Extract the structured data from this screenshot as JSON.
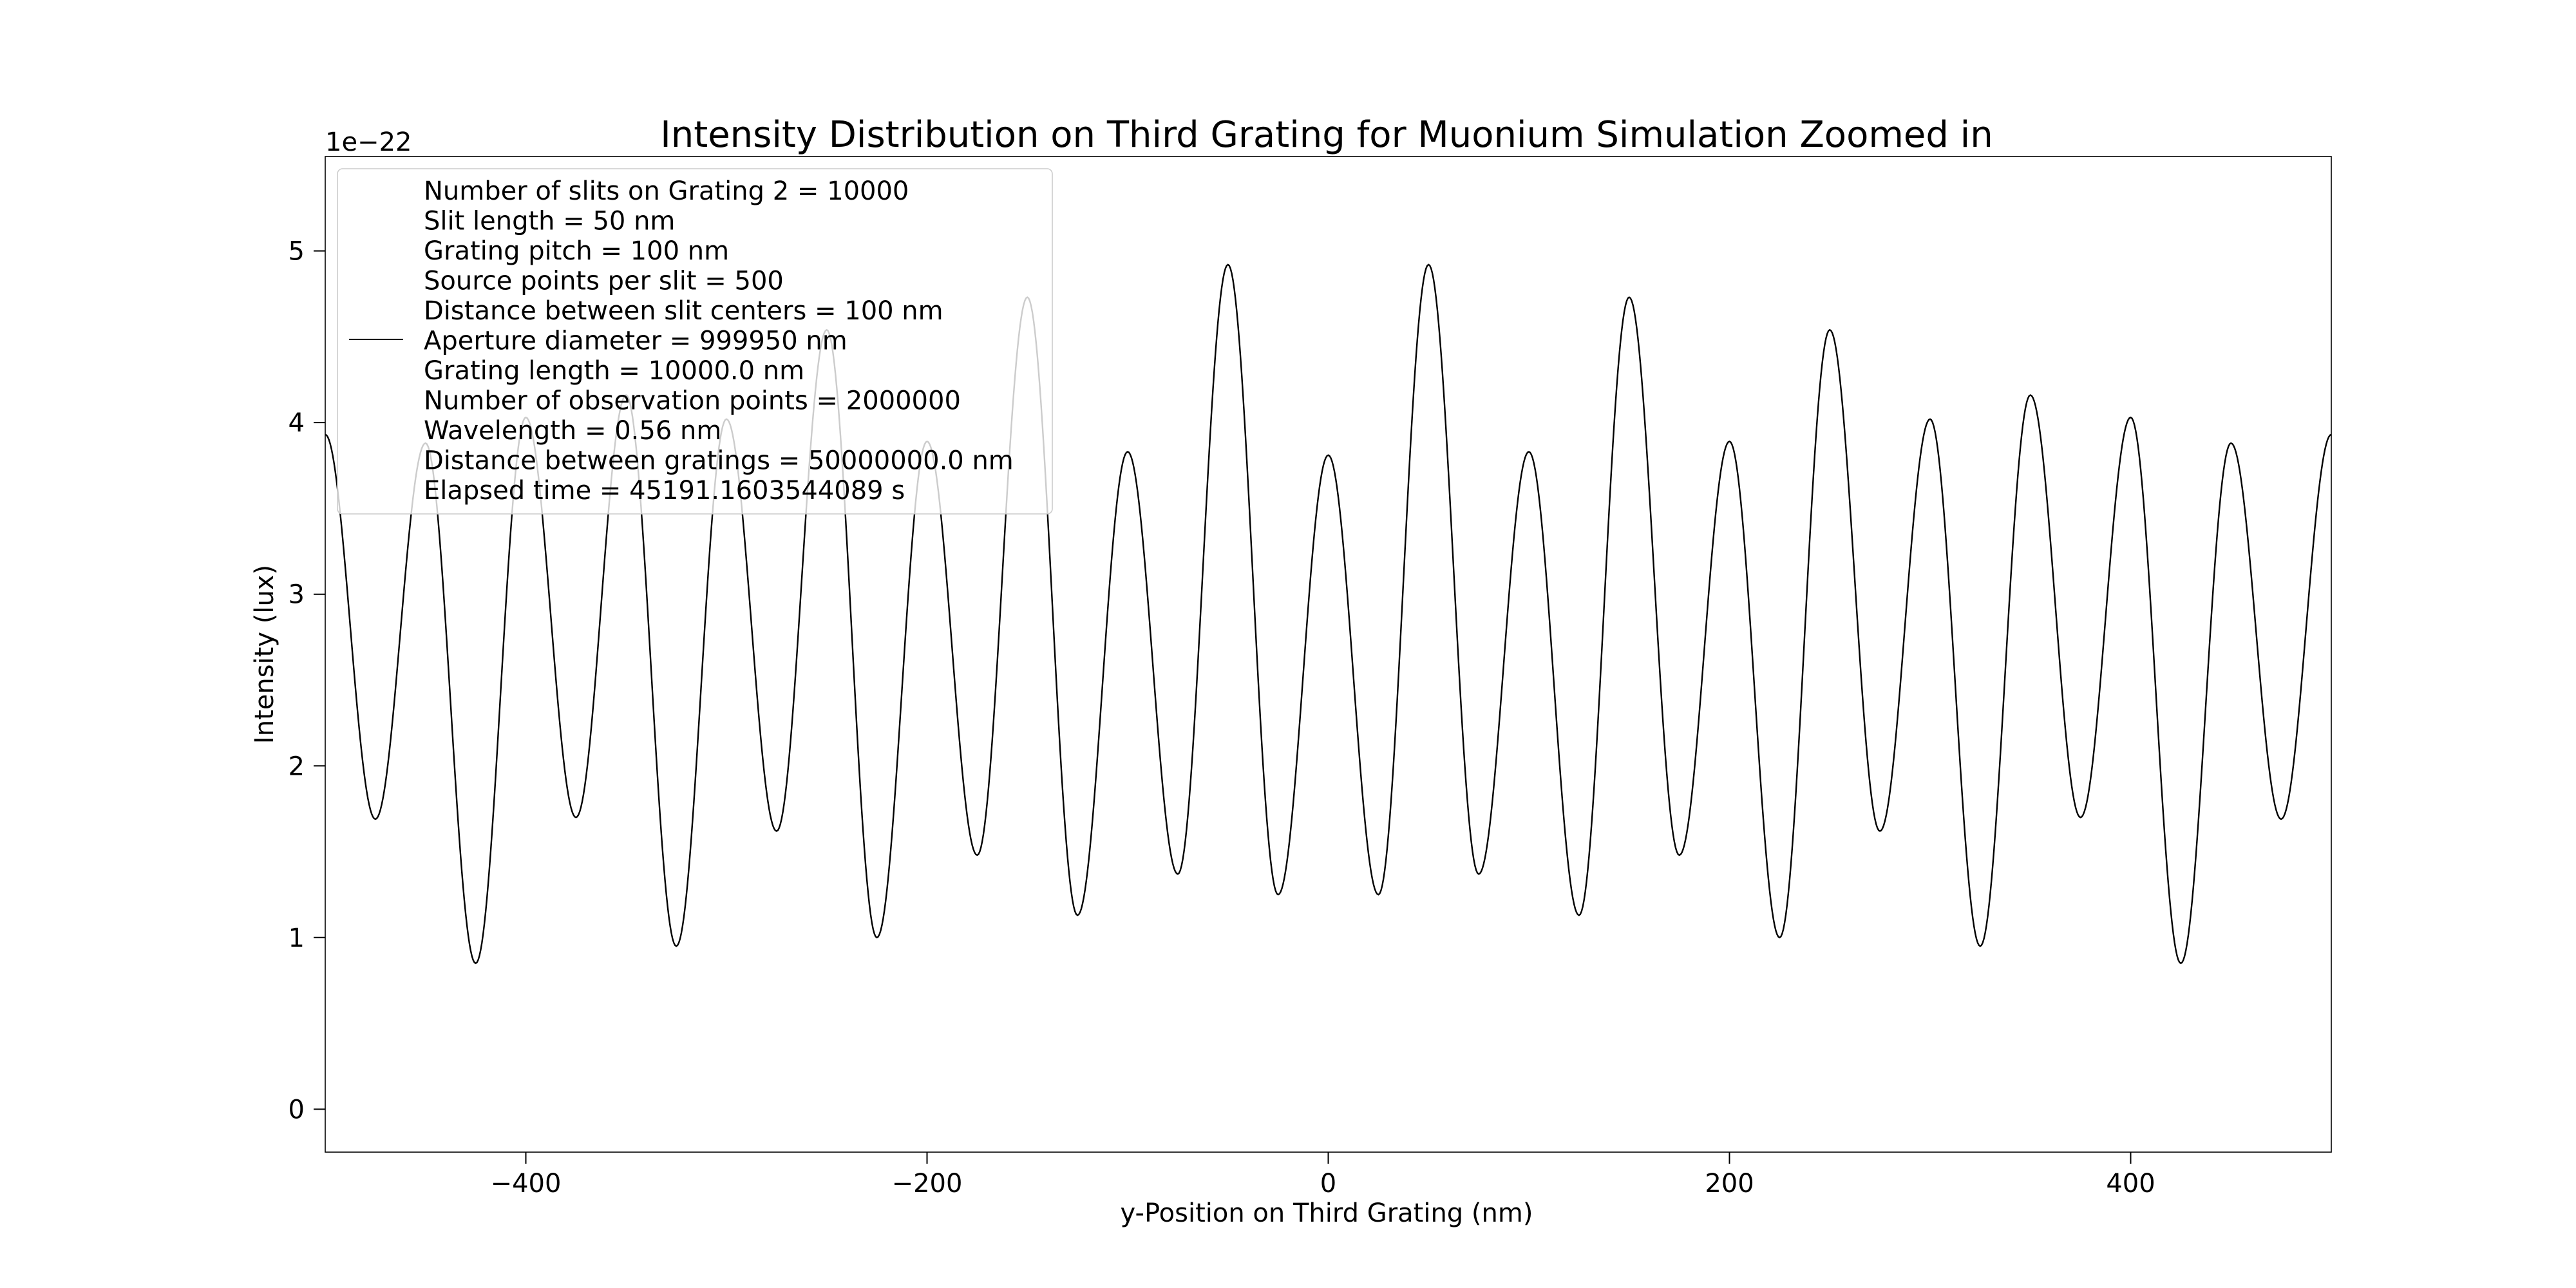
{
  "chart_data": {
    "type": "line",
    "title": "Intensity Distribution on Third Grating for Muonium Simulation Zoomed in",
    "xlabel": "y-Position on Third Grating (nm)",
    "ylabel": "Intensity (lux)",
    "y_offset_label": "1e−22",
    "y_scale": 1e-22,
    "xlim": [
      -500,
      500
    ],
    "ylim": [
      -0.25,
      5.55
    ],
    "x_ticks": [
      -400,
      -200,
      0,
      200,
      400
    ],
    "x_tick_labels": [
      "−400",
      "−200",
      "0",
      "200",
      "400"
    ],
    "y_ticks": [
      0,
      1,
      2,
      3,
      4,
      5
    ],
    "y_tick_labels": [
      "0",
      "1",
      "2",
      "3",
      "4",
      "5"
    ],
    "grid": false,
    "legend_placement": "upper-left",
    "series": [
      {
        "name": "Number of slits on Grating 2 = 10000\nSlit length = 50 nm\nGrating pitch = 100 nm\nSource points per slit = 500\nDistance between slit centers = 100 nm\nAperture diameter = 999950 nm\nGrating length = 10000.0 nm\nNumber of observation points = 2000000\nWavelength = 0.56 nm\nDistance between gratings = 50000000.0 nm\nElapsed time = 45191.1603544089 s",
        "color": "#000000",
        "x": [
          -500,
          -475,
          -450,
          -425,
          -400,
          -375,
          -350,
          -325,
          -300,
          -275,
          -250,
          -225,
          -200,
          -175,
          -150,
          -125,
          -100,
          -75,
          -50,
          -25,
          0,
          25,
          50,
          75,
          100,
          125,
          150,
          175,
          200,
          225,
          250,
          275,
          300,
          325,
          350,
          375,
          400,
          425,
          450,
          475,
          500
        ],
        "y": [
          3.93,
          1.69,
          3.88,
          0.85,
          4.03,
          1.7,
          4.16,
          0.95,
          4.02,
          1.62,
          4.54,
          1.0,
          3.89,
          1.48,
          4.73,
          1.13,
          3.83,
          1.37,
          4.92,
          1.25,
          3.81,
          1.25,
          4.92,
          1.37,
          3.83,
          1.13,
          4.73,
          1.48,
          3.89,
          1.0,
          4.54,
          1.62,
          4.02,
          0.95,
          4.16,
          1.7,
          4.03,
          0.85,
          3.88,
          1.69,
          3.93
        ]
      }
    ]
  }
}
